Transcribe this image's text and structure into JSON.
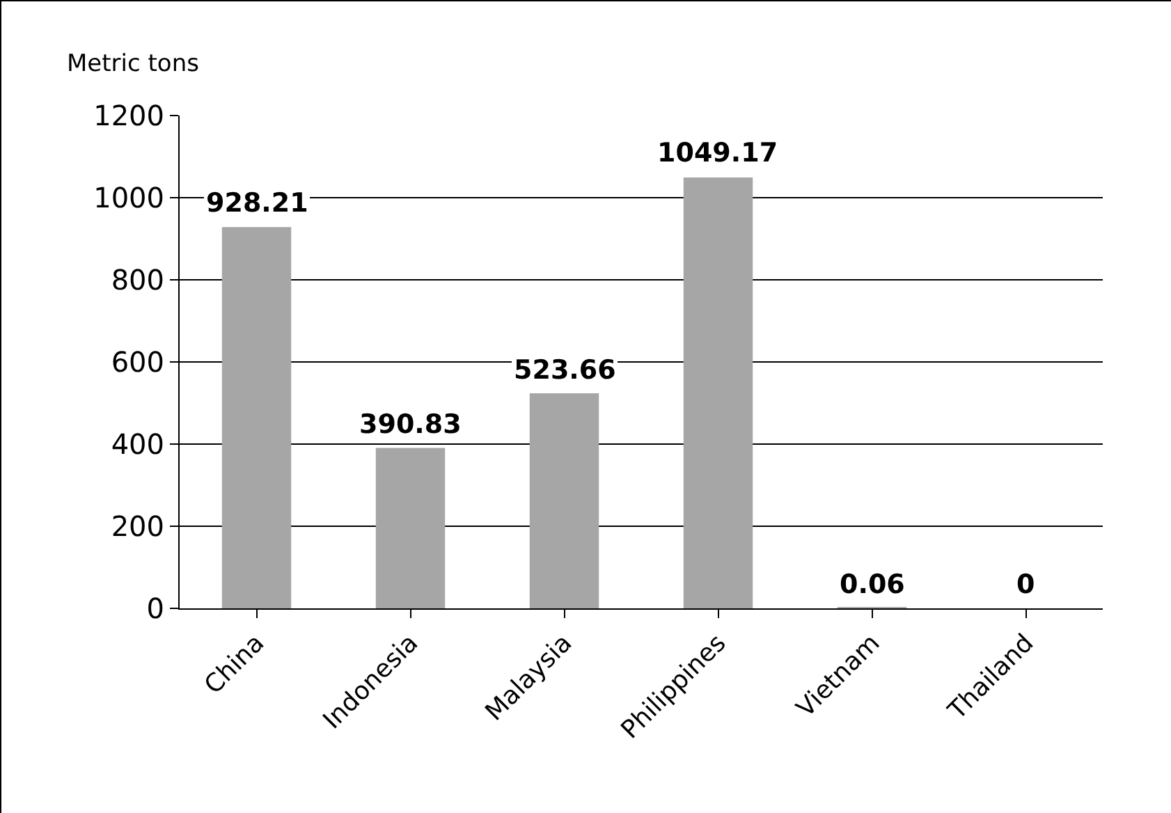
{
  "chart_data": {
    "type": "bar",
    "ylabel": "Metric tons",
    "categories": [
      "China",
      "Indonesia",
      "Malaysia",
      "Philippines",
      "Vietnam",
      "Thailand"
    ],
    "values": [
      928.21,
      390.83,
      523.66,
      1049.17,
      0.06,
      0
    ],
    "color": "#a6a6a6",
    "ylim": [
      0,
      1200
    ],
    "yticks": [
      0,
      200,
      400,
      600,
      800,
      1000,
      1200
    ],
    "grid": "y",
    "data_labels": true
  }
}
